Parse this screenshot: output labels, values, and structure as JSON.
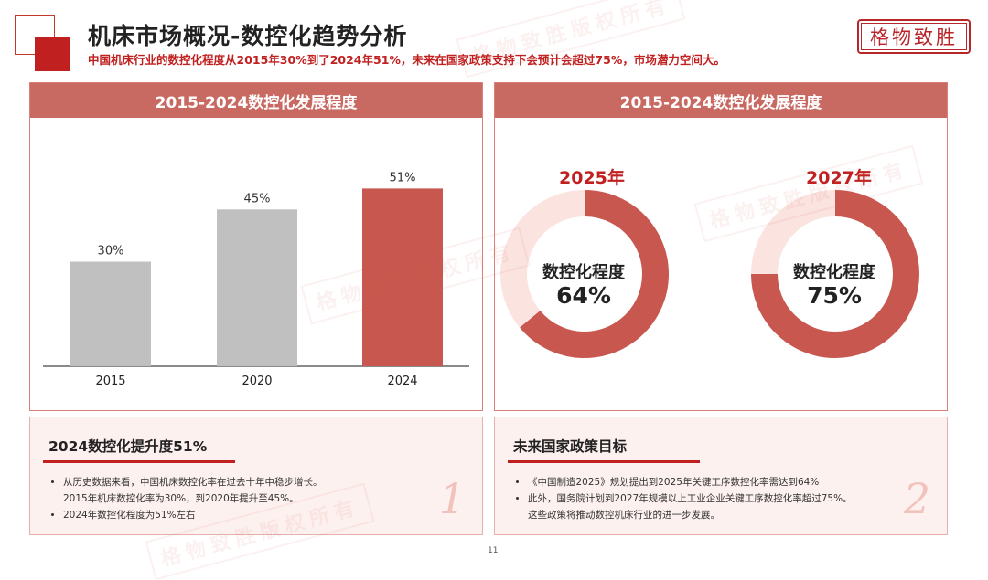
{
  "header": {
    "title": "机床市场概况-数控化趋势分析",
    "subtitle": "中国机床行业的数控化程度从2015年30%到了2024年51%，未来在国家政策支持下会预计会超过75%，市场潜力空间大。",
    "logo_text": "格物致胜"
  },
  "watermark_text": "格物致胜版权所有",
  "left_panel": {
    "title": "2015-2024数控化发展程度"
  },
  "right_panel": {
    "title": "2015-2024数控化发展程度"
  },
  "chart_data": [
    {
      "type": "bar",
      "title": "2015-2024数控化发展程度",
      "categories": [
        "2015",
        "2020",
        "2024"
      ],
      "values": [
        30,
        45,
        51
      ],
      "data_labels": [
        "30%",
        "45%",
        "51%"
      ],
      "ylim": [
        0,
        60
      ],
      "colors": [
        "#c0c0c0",
        "#c0c0c0",
        "#c8584f"
      ],
      "grid": false
    },
    {
      "type": "pie",
      "title": "2025年",
      "label": "数控化程度",
      "value": 64,
      "value_label": "64%",
      "color_filled": "#c8584f",
      "color_rest": "#fbe3e0"
    },
    {
      "type": "pie",
      "title": "2027年",
      "label": "数控化程度",
      "value": 75,
      "value_label": "75%",
      "color_filled": "#c8584f",
      "color_rest": "#fbe3e0"
    }
  ],
  "bottom_left": {
    "title": "2024数控化提升度51%",
    "items": [
      "从历史数据来看，中国机床数控化率在过去十年中稳步增长。",
      "2015年机床数控化率为30%，到2020年提升至45%。",
      "2024年数控化程度为51%左右"
    ],
    "number": "1"
  },
  "bottom_right": {
    "title": "未来国家政策目标",
    "items": [
      "《中国制造2025》规划提出到2025年关键工序数控化率需达到64%",
      "此外，国务院计划到2027年规模以上工业企业关键工序数控化率超过75%。",
      "这些政策将推动数控机床行业的进一步发展。"
    ],
    "number": "2"
  },
  "page_number": "11"
}
